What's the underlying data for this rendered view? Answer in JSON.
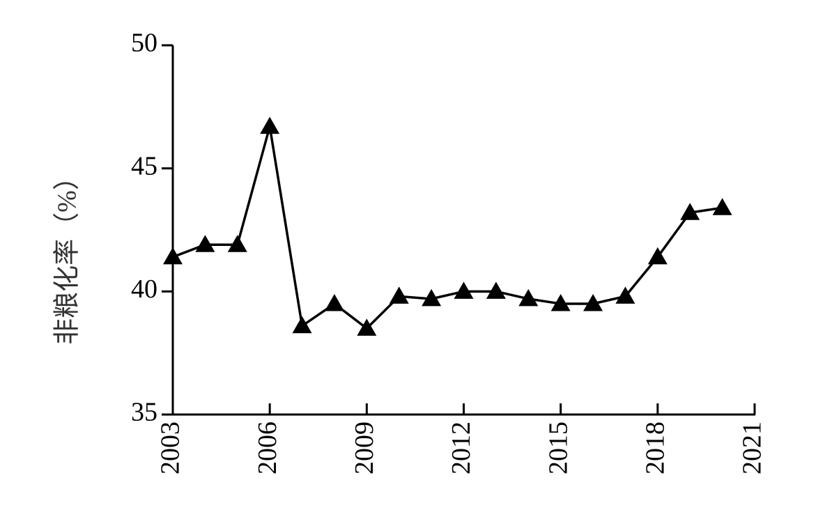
{
  "chart_data": {
    "type": "line",
    "ylabel": "非粮化率（%）",
    "x": [
      2003,
      2004,
      2005,
      2006,
      2007,
      2008,
      2009,
      2010,
      2011,
      2012,
      2013,
      2014,
      2015,
      2016,
      2017,
      2018,
      2019,
      2020
    ],
    "series": [
      {
        "color": "#000000",
        "marker": "triangle",
        "values": [
          41.4,
          41.9,
          41.9,
          46.7,
          38.6,
          39.5,
          38.5,
          39.8,
          39.7,
          40.0,
          40.0,
          39.7,
          39.5,
          39.5,
          39.8,
          41.4,
          43.2,
          43.4
        ]
      }
    ],
    "xlim": [
      2003,
      2021
    ],
    "xticks": [
      2003,
      2006,
      2009,
      2012,
      2015,
      2018,
      2021
    ],
    "ylim": [
      35,
      50
    ],
    "yticks": [
      35,
      40,
      45,
      50
    ],
    "grid": false
  }
}
